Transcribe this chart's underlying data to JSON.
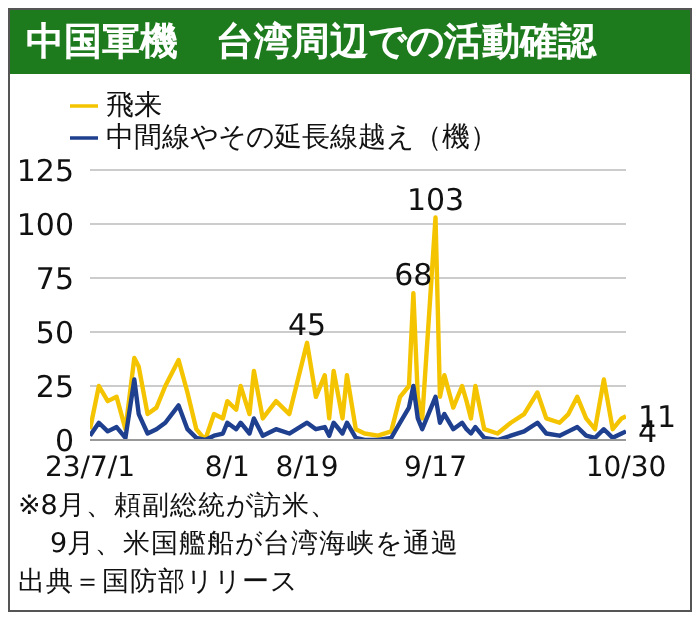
{
  "chart_data": {
    "type": "line",
    "title": "中国軍機　台湾周辺での活動確認",
    "x": [
      "--07-01",
      "--07-03",
      "--07-05",
      "--07-07",
      "--07-09",
      "--07-11",
      "--07-12",
      "--07-14",
      "--07-16",
      "--07-18",
      "--07-21",
      "--07-23",
      "--07-25",
      "--07-27",
      "--07-29",
      "--07-31",
      "--08-01",
      "--08-03",
      "--08-04",
      "--08-06",
      "--08-07",
      "--08-09",
      "--08-12",
      "--08-15",
      "--08-19",
      "--08-21",
      "--08-23",
      "--08-24",
      "--08-25",
      "--08-27",
      "--08-28",
      "--08-30",
      "--09-01",
      "--09-04",
      "--09-07",
      "--09-09",
      "--09-11",
      "--09-12",
      "--09-13",
      "--09-14",
      "--09-17",
      "--09-18",
      "--09-19",
      "--09-21",
      "--09-23",
      "--09-24",
      "--09-25",
      "--09-26",
      "--09-28",
      "--10-01",
      "--10-04",
      "--10-07",
      "--10-10",
      "--10-12",
      "--10-15",
      "--10-17",
      "--10-19",
      "--10-21",
      "--10-23",
      "--10-25",
      "--10-27",
      "--10-29",
      "--10-30"
    ],
    "series": [
      {
        "name": "飛来",
        "color": "#f5c400",
        "values": [
          5,
          25,
          18,
          20,
          5,
          38,
          34,
          12,
          15,
          25,
          37,
          22,
          5,
          0,
          12,
          10,
          18,
          14,
          25,
          12,
          32,
          10,
          18,
          12,
          45,
          20,
          30,
          10,
          32,
          10,
          30,
          5,
          3,
          2,
          4,
          20,
          25,
          68,
          20,
          10,
          103,
          20,
          30,
          15,
          25,
          18,
          10,
          25,
          5,
          3,
          8,
          12,
          22,
          10,
          8,
          12,
          20,
          10,
          5,
          28,
          5,
          10,
          11
        ]
      },
      {
        "name": "中間線やその延長線越え（機）",
        "color": "#1f3f8f",
        "values": [
          2,
          8,
          4,
          6,
          1,
          28,
          12,
          3,
          5,
          8,
          16,
          5,
          1,
          0,
          2,
          3,
          8,
          5,
          8,
          3,
          10,
          2,
          5,
          3,
          8,
          5,
          6,
          2,
          8,
          3,
          8,
          1,
          0,
          0,
          1,
          8,
          15,
          25,
          10,
          5,
          20,
          8,
          12,
          5,
          8,
          5,
          3,
          6,
          1,
          0,
          2,
          4,
          8,
          3,
          2,
          4,
          6,
          2,
          1,
          5,
          1,
          3,
          4
        ]
      }
    ],
    "xlim": [
      "--07-01",
      "--10-30"
    ],
    "xticks": [
      {
        "value": "--07-01",
        "label": "23/7/1"
      },
      {
        "value": "--08-01",
        "label": "8/1"
      },
      {
        "value": "--08-19",
        "label": "8/19"
      },
      {
        "value": "--09-17",
        "label": "9/17"
      },
      {
        "value": "--10-30",
        "label": "10/30"
      }
    ],
    "ylim": [
      0,
      125
    ],
    "yticks": [
      0,
      25,
      50,
      75,
      100,
      125
    ],
    "grid": "y",
    "legend": "top left",
    "marker": "none",
    "line_style": "solid",
    "annotations": [
      {
        "text": "45",
        "x": "--08-19",
        "y": 45
      },
      {
        "text": "68",
        "x": "--09-12",
        "y": 68
      },
      {
        "text": "103",
        "x": "--09-17",
        "y": 103
      },
      {
        "text": "11",
        "x": "--10-30",
        "y": 11
      },
      {
        "text": "4",
        "x": "--10-30",
        "y": 4
      },
      "※8月、頼副総統が訪米、",
      "9月、米国艦船が台湾海峡を通過",
      "出典＝国防部リリース"
    ]
  }
}
